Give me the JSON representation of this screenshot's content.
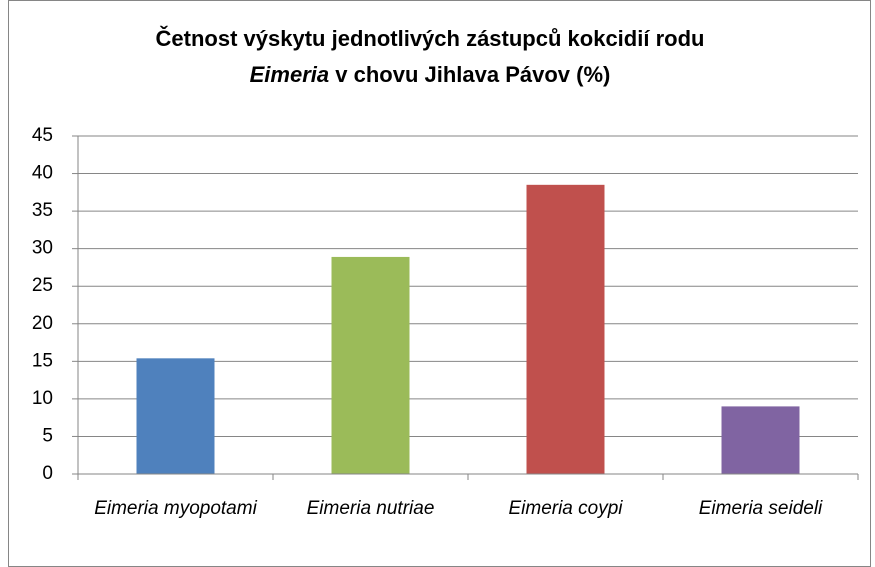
{
  "chart_data": {
    "type": "bar",
    "title": [
      "Četnost výskytu jednotlivých zástupců kokcidií rodu",
      "Eimeria",
      "v chovu Jihlava Pávov (%)"
    ],
    "categories": [
      "Eimeria myopotami",
      "Eimeria nutriae",
      "Eimeria coypi",
      "Eimeria seideli"
    ],
    "values": [
      15.4,
      28.9,
      38.5,
      9.0
    ],
    "colors": [
      "#4f81bd",
      "#9bbb59",
      "#c0504d",
      "#8064a2"
    ],
    "ylim": [
      0,
      45
    ],
    "yticks": [
      0,
      5,
      10,
      15,
      20,
      25,
      30,
      35,
      40,
      45
    ],
    "grid": true
  }
}
